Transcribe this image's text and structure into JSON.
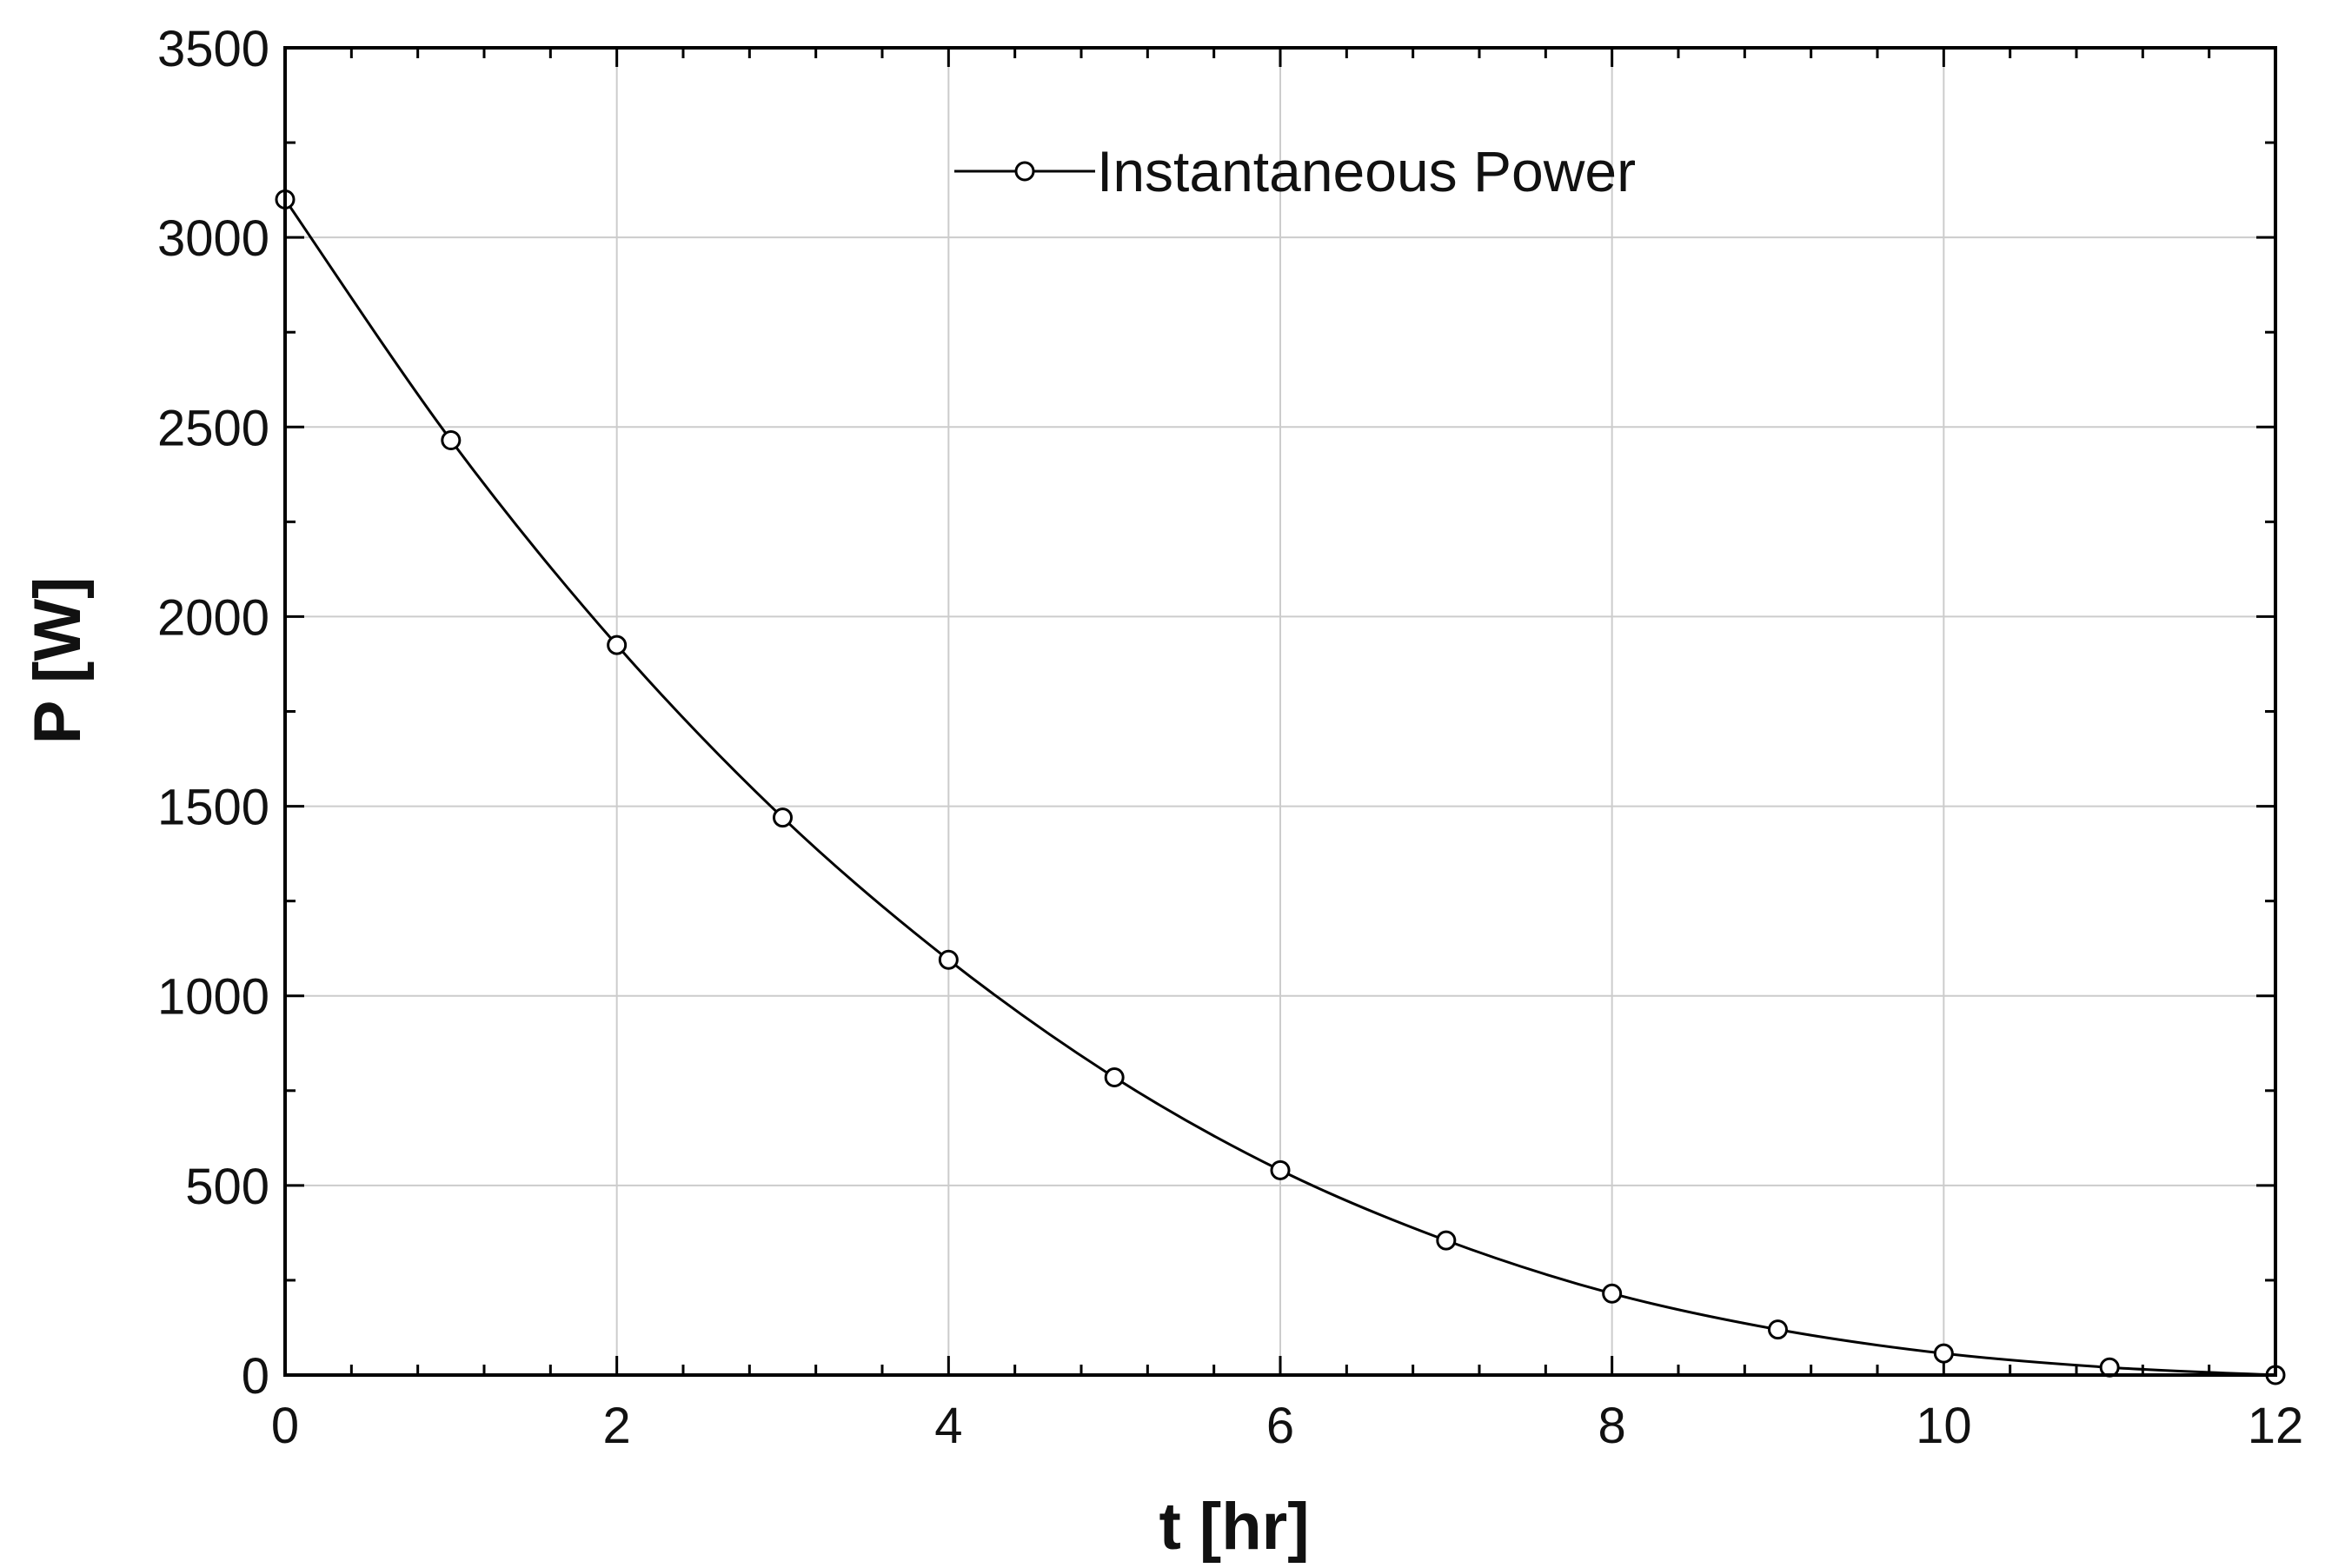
{
  "chart_data": {
    "type": "line",
    "title": "",
    "xlabel": "t  [hr]",
    "ylabel": "P  [W]",
    "xlim": [
      0,
      12
    ],
    "ylim": [
      0,
      3500
    ],
    "x_ticks": [
      0,
      2,
      4,
      6,
      8,
      10,
      12
    ],
    "y_ticks": [
      0,
      500,
      1000,
      1500,
      2000,
      2500,
      3000,
      3500
    ],
    "grid": true,
    "legend_position": "top-center",
    "series": [
      {
        "name": "Instantaneous Power",
        "marker": "open-circle",
        "color": "#000000",
        "x": [
          0,
          1,
          2,
          3,
          4,
          5,
          6,
          7,
          8,
          9,
          10,
          11,
          12
        ],
        "values": [
          3100,
          2465,
          1925,
          1470,
          1095,
          785,
          540,
          355,
          215,
          120,
          57,
          20,
          0
        ]
      }
    ]
  },
  "colors": {
    "grid": "#cccccc",
    "axis": "#000000",
    "series": "#000000"
  }
}
